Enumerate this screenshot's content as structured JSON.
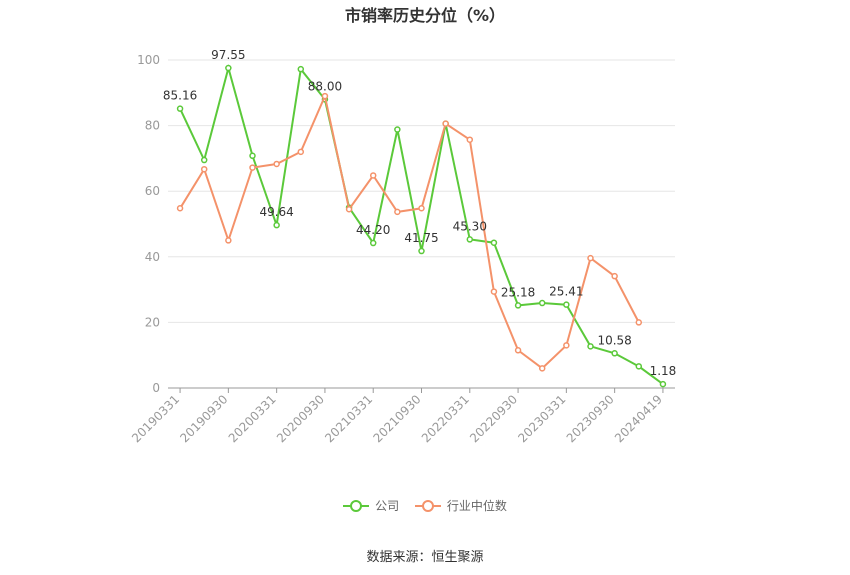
{
  "chart_data": {
    "type": "line",
    "title": "市销率历史分位（%）",
    "ylim": [
      0,
      100
    ],
    "yticks": [
      "0",
      "20",
      "40",
      "60",
      "80",
      "100"
    ],
    "x_tick_labels": [
      "20190331",
      "20190930",
      "20200331",
      "20200930",
      "20210331",
      "20210930",
      "20220331",
      "20220930",
      "20230331",
      "20230930",
      "20240419"
    ],
    "x": [
      "20190331",
      "20190630",
      "20190930",
      "20191231",
      "20200331",
      "20200630",
      "20200930",
      "20201231",
      "20210331",
      "20210630",
      "20210930",
      "20211231",
      "20220331",
      "20220630",
      "20220930",
      "20221231",
      "20230331",
      "20230630",
      "20230930",
      "20231231",
      "20240419"
    ],
    "series": [
      {
        "name": "公司",
        "color": "#5bc93a",
        "values": [
          85.16,
          69.5,
          97.55,
          70.8,
          49.64,
          97.2,
          88.0,
          55.0,
          44.2,
          78.8,
          41.75,
          80.6,
          45.3,
          44.3,
          25.18,
          25.9,
          25.41,
          12.7,
          10.58,
          6.6,
          1.18
        ],
        "labels": {
          "0": "85.16",
          "2": "97.55",
          "4": "49.64",
          "6": "88.00",
          "8": "44.20",
          "10": "41.75",
          "12": "45.30",
          "14": "25.18",
          "16": "25.41",
          "18": "10.58",
          "20": "1.18"
        }
      },
      {
        "name": "行业中位数",
        "color": "#f4926a",
        "values": [
          54.8,
          66.7,
          45.0,
          67.2,
          68.3,
          72.0,
          89.0,
          54.5,
          64.8,
          53.7,
          54.8,
          80.6,
          75.7,
          29.4,
          11.5,
          6.0,
          13.0,
          39.6,
          34.1,
          20.0,
          null
        ]
      }
    ],
    "legend_position": "bottom",
    "grid": true
  },
  "footer": {
    "source": "数据来源：恒生聚源"
  }
}
